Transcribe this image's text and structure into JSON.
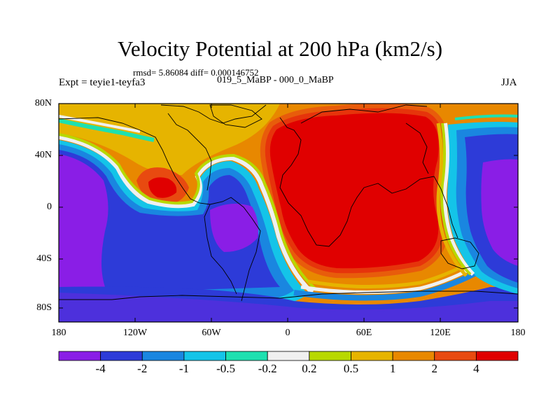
{
  "title": "Velocity Potential at 200 hPa (km2/s)",
  "stats": "rmsd= 5.86084  diff= 0.000146752",
  "left_label": "Expt = teyie1-teyfa3",
  "center_label": "019_5_MaBP - 000_0_MaBP",
  "right_label": "JJA",
  "y_ticks": [
    "80N",
    "40N",
    "0",
    "40S",
    "80S"
  ],
  "x_ticks": [
    "180",
    "120W",
    "60W",
    "0",
    "60E",
    "120E",
    "180"
  ],
  "colorbar": {
    "labels": [
      "-4",
      "-2",
      "-1",
      "-0.5",
      "-0.2",
      "0.2",
      "0.5",
      "1",
      "2",
      "4"
    ],
    "colors": [
      "#8a1ee6",
      "#2d3bd8",
      "#1a86e0",
      "#14c4e8",
      "#1ee0b0",
      "#f0f0f0",
      "#b8d800",
      "#e6b400",
      "#e88800",
      "#e84a10",
      "#e00000"
    ]
  }
}
